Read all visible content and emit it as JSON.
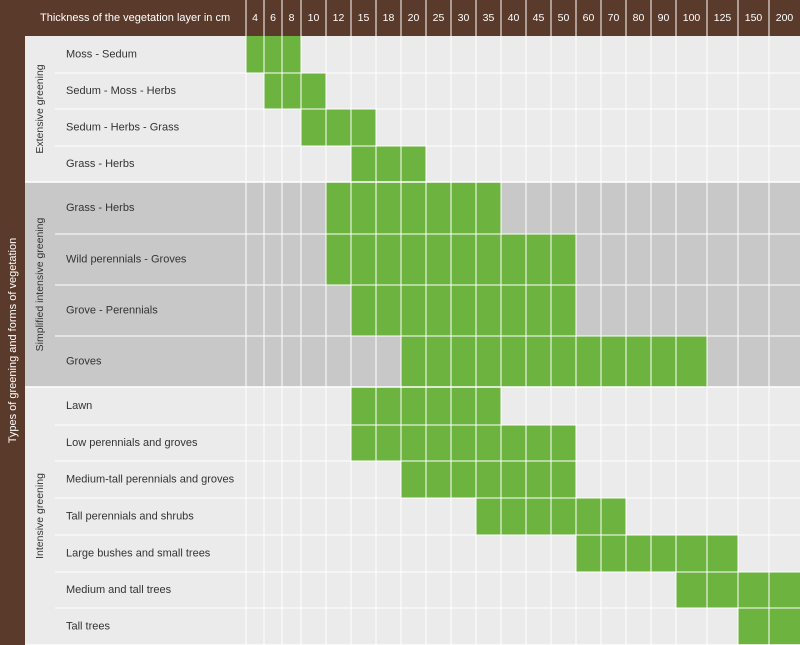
{
  "chart_data": {
    "type": "heatmap",
    "title": "",
    "xlabel": "Thickness of the vegetation layer in cm",
    "ylabel": "Types of greening and forms of vegetation",
    "x_categories": [
      "4",
      "6",
      "8",
      "10",
      "12",
      "15",
      "18",
      "20",
      "25",
      "30",
      "35",
      "40",
      "45",
      "50",
      "60",
      "70",
      "80",
      "90",
      "100",
      "125",
      "150",
      "200"
    ],
    "groups": [
      {
        "name": "Extensive greening",
        "rows": [
          {
            "label": "Moss - Sedum",
            "from": "4",
            "to": "8"
          },
          {
            "label": "Sedum - Moss - Herbs",
            "from": "6",
            "to": "10"
          },
          {
            "label": "Sedum - Herbs - Grass",
            "from": "10",
            "to": "15"
          },
          {
            "label": "Grass - Herbs",
            "from": "15",
            "to": "20"
          }
        ]
      },
      {
        "name": "Simplified intensive greening",
        "rows": [
          {
            "label": "Grass - Herbs",
            "from": "12",
            "to": "35"
          },
          {
            "label": "Wild perennials - Groves",
            "from": "12",
            "to": "50"
          },
          {
            "label": "Grove - Perennials",
            "from": "15",
            "to": "50"
          },
          {
            "label": "Groves",
            "from": "20",
            "to": "100"
          }
        ]
      },
      {
        "name": "Intensive greening",
        "rows": [
          {
            "label": "Lawn",
            "from": "15",
            "to": "35"
          },
          {
            "label": "Low perennials and groves",
            "from": "15",
            "to": "50"
          },
          {
            "label": "Medium-tall perennials and groves",
            "from": "20",
            "to": "50"
          },
          {
            "label": "Tall perennials and shrubs",
            "from": "35",
            "to": "70"
          },
          {
            "label": "Large bushes and small trees",
            "from": "60",
            "to": "125"
          },
          {
            "label": "Medium and tall trees",
            "from": "100",
            "to": "200"
          },
          {
            "label": "Tall trees",
            "from": "150",
            "to": "200"
          }
        ]
      }
    ],
    "colors": {
      "header_bg": "#5a3a2a",
      "active": "#6db33f",
      "light_row": "#ebebeb",
      "mid_row": "#c8c8c8",
      "grid": "#ffffff"
    }
  }
}
